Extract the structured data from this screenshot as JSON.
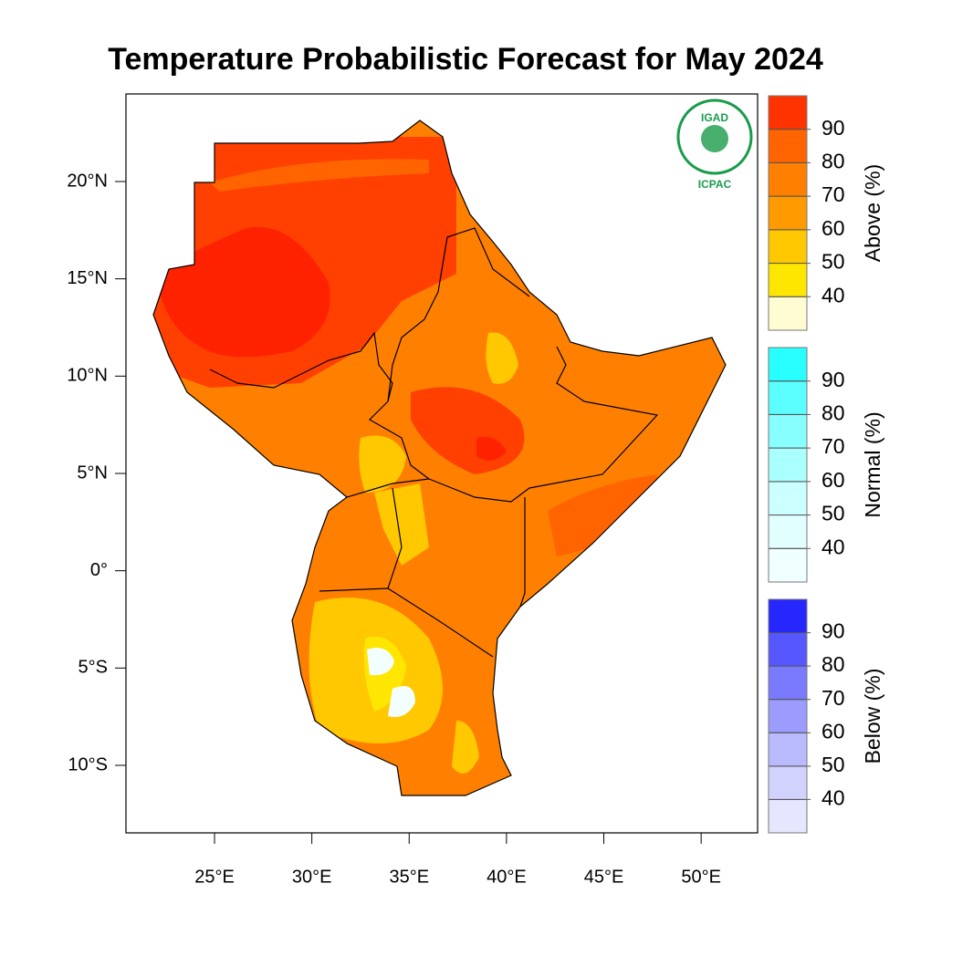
{
  "title": "Temperature Probabilistic Forecast for May 2024",
  "map": {
    "xlim": [
      20.45,
      52.9
    ],
    "ylim": [
      -13.47,
      24.5
    ],
    "xticks": [
      {
        "value": 25,
        "label": "25°E"
      },
      {
        "value": 30,
        "label": "30°E"
      },
      {
        "value": 35,
        "label": "35°E"
      },
      {
        "value": 40,
        "label": "40°E"
      },
      {
        "value": 45,
        "label": "45°E"
      },
      {
        "value": 50,
        "label": "50°E"
      }
    ],
    "yticks": [
      {
        "value": 20,
        "label": "20°N"
      },
      {
        "value": 15,
        "label": "15°N"
      },
      {
        "value": 10,
        "label": "10°N"
      },
      {
        "value": 5,
        "label": "5°N"
      },
      {
        "value": 0,
        "label": "0°"
      },
      {
        "value": -5,
        "label": "5°S"
      },
      {
        "value": -10,
        "label": "10°S"
      }
    ]
  },
  "logo": {
    "name": "IGAD",
    "org": "ICPAC"
  },
  "colorbars": [
    {
      "title": "Above (%)",
      "colors": [
        "#fffbd2",
        "#ffe600",
        "#ffc800",
        "#ff9a00",
        "#ff8000",
        "#ff6400",
        "#ff3300"
      ],
      "ticks": [
        40,
        50,
        60,
        70,
        80,
        90
      ]
    },
    {
      "title": "Normal (%)",
      "colors": [
        "#f0ffff",
        "#e2ffff",
        "#ccffff",
        "#aaffff",
        "#88ffff",
        "#5cffff",
        "#28ffff"
      ],
      "ticks": [
        40,
        50,
        60,
        70,
        80,
        90
      ]
    },
    {
      "title": "Below (%)",
      "colors": [
        "#e6e6ff",
        "#d2d2ff",
        "#babaff",
        "#9c9cff",
        "#7a7aff",
        "#5757ff",
        "#2626ff"
      ],
      "ticks": [
        40,
        50,
        60,
        70,
        80,
        90
      ]
    }
  ]
}
